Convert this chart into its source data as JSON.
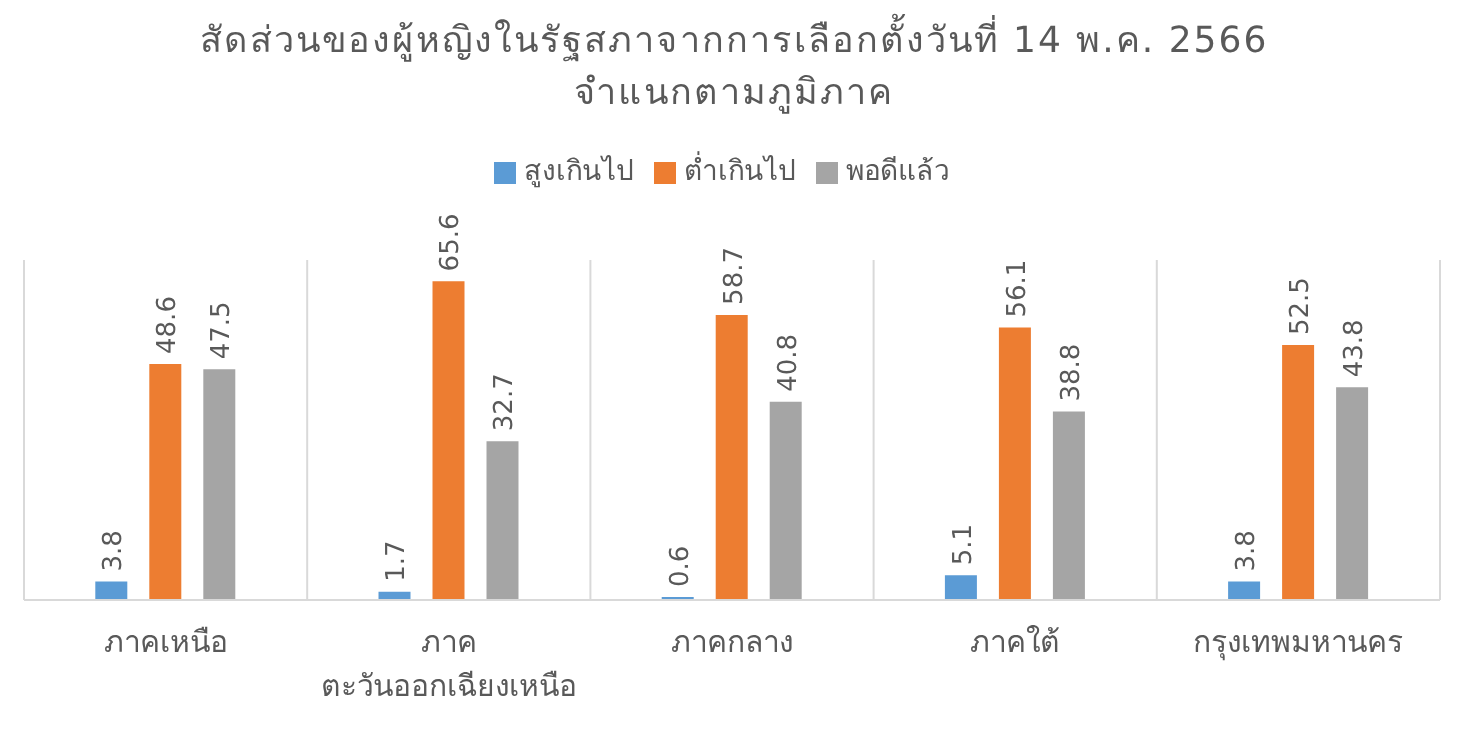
{
  "chart_data": {
    "type": "bar",
    "title": "สัดส่วนของผู้หญิงในรัฐสภาจากการเลือกตั้งวันที่ 14 พ.ค. 2566",
    "subtitle": "จำแนกตามภูมิภาค",
    "categories": [
      "ภาคเหนือ",
      "ภาค ตะวันออกเฉียงเหนือ",
      "ภาคกลาง",
      "ภาคใต้",
      "กรุงเทพมหานคร"
    ],
    "series": [
      {
        "name": "สูงเกินไป",
        "color": "#5b9bd5",
        "values": [
          3.8,
          1.7,
          0.6,
          5.1,
          3.8
        ]
      },
      {
        "name": "ต่ำเกินไป",
        "color": "#ed7d31",
        "values": [
          48.6,
          65.6,
          58.7,
          56.1,
          52.5
        ]
      },
      {
        "name": "พอดีแล้ว",
        "color": "#a5a5a5",
        "values": [
          47.5,
          32.7,
          40.8,
          38.8,
          43.8
        ]
      }
    ],
    "ylim": [
      0,
      70
    ],
    "data_labels": true,
    "grid": "x",
    "legend": "top",
    "tick_labels": "x"
  }
}
